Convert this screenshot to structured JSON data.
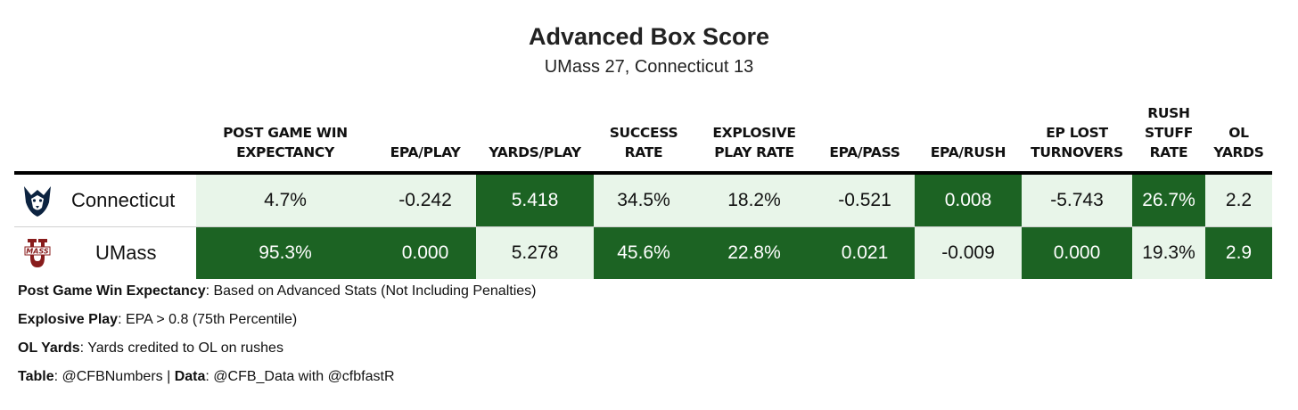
{
  "title": "Advanced Box Score",
  "subtitle": "UMass 27, Connecticut 13",
  "colors": {
    "dark": "#1c6323",
    "light": "#e8f5e9",
    "dark_text": "#ffffff",
    "light_text": "#111111"
  },
  "chart_data": {
    "type": "table",
    "columns": [
      "Post Game Win Expectancy",
      "EPA/Play",
      "Yards/Play",
      "Success Rate",
      "Explosive Play Rate",
      "EPA/Pass",
      "EPA/Rush",
      "EP Lost Turnovers",
      "Rush Stuff Rate",
      "OL Yards"
    ],
    "rows": [
      {
        "team": "Connecticut",
        "logo": "huskies-logo",
        "values": [
          "4.7%",
          "-0.242",
          "5.418",
          "34.5%",
          "18.2%",
          "-0.521",
          "0.008",
          "-5.743",
          "26.7%",
          "2.2"
        ],
        "shade": [
          "light",
          "light",
          "dark",
          "light",
          "light",
          "light",
          "dark",
          "light",
          "dark",
          "light"
        ]
      },
      {
        "team": "UMass",
        "logo": "umass-logo",
        "values": [
          "95.3%",
          "0.000",
          "5.278",
          "45.6%",
          "22.8%",
          "0.021",
          "-0.009",
          "0.000",
          "19.3%",
          "2.9"
        ],
        "shade": [
          "dark",
          "dark",
          "light",
          "dark",
          "dark",
          "dark",
          "light",
          "dark",
          "light",
          "dark"
        ]
      }
    ]
  },
  "notes": [
    {
      "label": "Post Game Win Expectancy",
      "sep": ": ",
      "text": "Based on Advanced Stats (Not Including Penalties)"
    },
    {
      "label": "Explosive Play",
      "sep": ": ",
      "text": "EPA > 0.8 (75th Percentile)"
    },
    {
      "label": "OL Yards",
      "sep": ": ",
      "text": "Yards credited to OL on rushes"
    }
  ],
  "credits": {
    "table_label": "Table",
    "table_value": "@CFBNumbers",
    "divider": " | ",
    "data_label": "Data",
    "data_value": "@CFB_Data with @cfbfastR"
  }
}
